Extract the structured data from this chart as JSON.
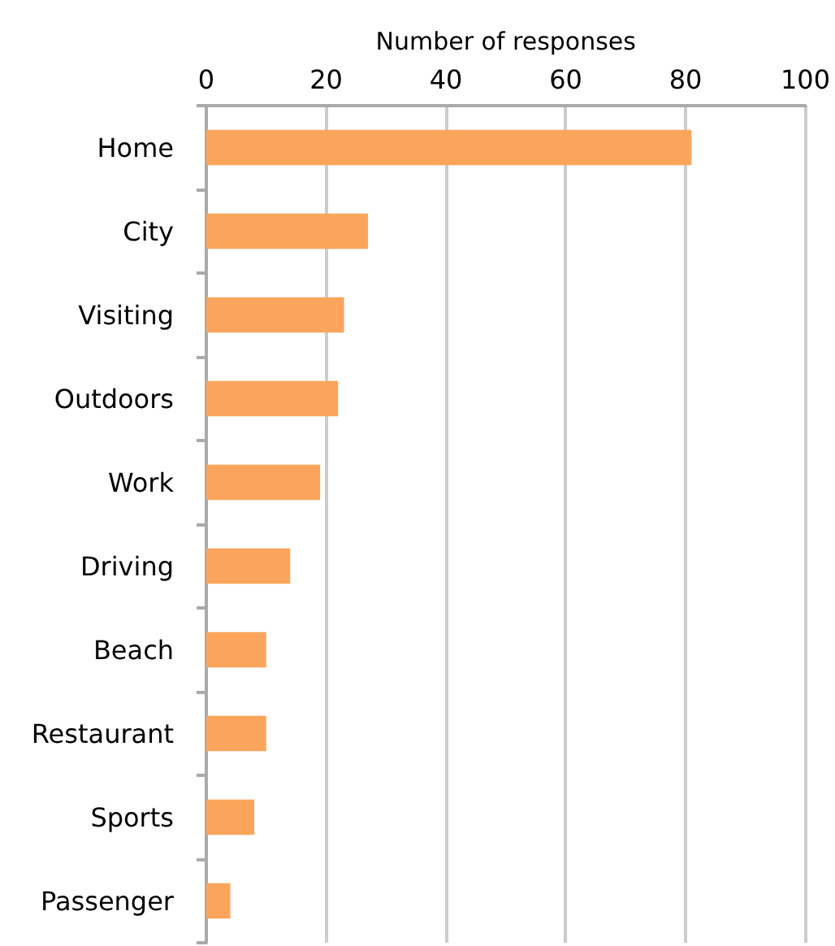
{
  "chart_data": {
    "type": "bar",
    "orientation": "horizontal",
    "xlabel": "Number of responses",
    "categories": [
      "Home",
      "City",
      "Visiting",
      "Outdoors",
      "Work",
      "Driving",
      "Beach",
      "Restaurant",
      "Sports",
      "Passenger"
    ],
    "values": [
      81,
      27,
      23,
      22,
      19,
      14,
      10,
      10,
      8,
      4
    ],
    "color": "#fba55c",
    "xlim": [
      0,
      100
    ],
    "xticks": [
      0,
      20,
      40,
      60,
      80,
      100
    ],
    "grid": "x"
  }
}
